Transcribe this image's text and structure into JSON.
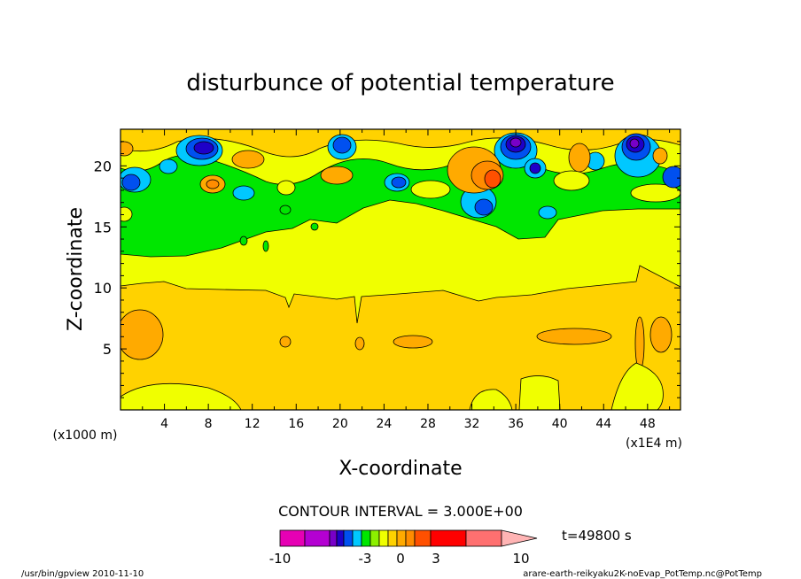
{
  "chart_data": {
    "type": "heatmap",
    "title": "disturbunce of potential temperature",
    "xlabel": "X-coordinate",
    "ylabel": "Z-coordinate",
    "x_unit_label": "(x1E4 m)",
    "y_unit_label": "(x1000 m)",
    "x_ticks": [
      "4",
      "8",
      "12",
      "16",
      "20",
      "24",
      "28",
      "32",
      "36",
      "40",
      "44",
      "48"
    ],
    "y_ticks": [
      "5",
      "10",
      "15",
      "20"
    ],
    "xlim": [
      0,
      51
    ],
    "ylim": [
      0,
      23
    ],
    "contour_interval_text": "CONTOUR INTERVAL = 3.000E+00",
    "time_text": "t=49800 s",
    "colorbar": {
      "tick_labels": [
        "-10",
        "-3",
        "0",
        "3",
        "10"
      ],
      "colors": [
        "#e600b4",
        "#b400d2",
        "#7800c8",
        "#1e00c8",
        "#0050f0",
        "#00c8ff",
        "#00e600",
        "#8cf000",
        "#f0ff00",
        "#ffd200",
        "#ffaa00",
        "#ff8c00",
        "#ff5000",
        "#ff0000",
        "#ff7070",
        "#ffb4b4"
      ],
      "extends_above": true
    },
    "field_colors": {
      "lowest": "#7800c8",
      "strong_negative": "#1e00c8",
      "moderate_negative": "#0050f0",
      "weak_negative": "#00c8ff",
      "near_zero_neg": "#00e600",
      "near_zero": "#f0ff00",
      "weak_positive": "#ffd200",
      "moderate_positive": "#ffaa00",
      "strong_positive": "#ff8c00"
    }
  },
  "footer": {
    "left": "/usr/bin/gpview  2010-11-10",
    "right": "arare-earth-reikyaku2K-noEvap_PotTemp.nc@PotTemp"
  }
}
